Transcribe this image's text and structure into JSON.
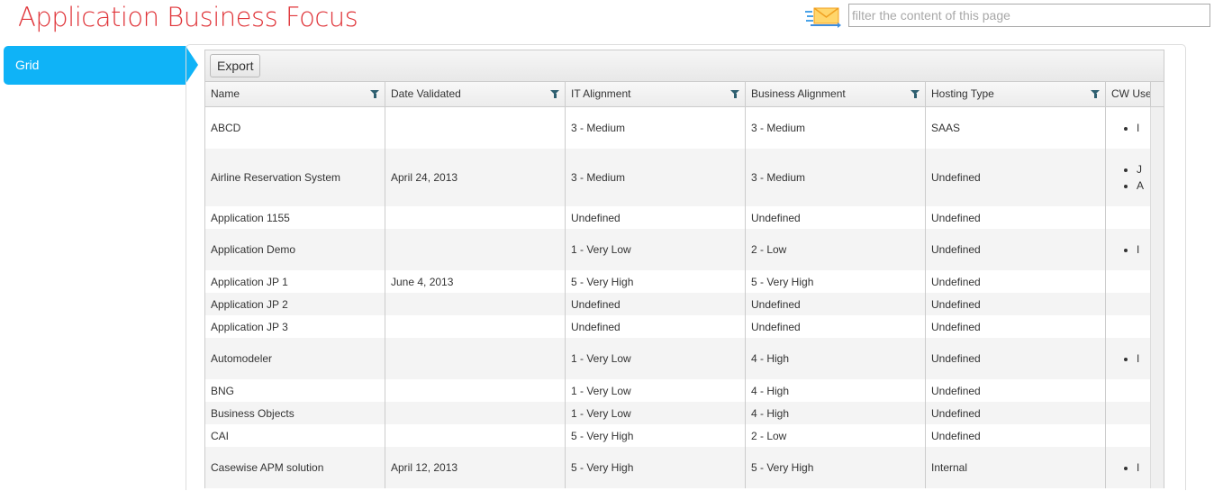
{
  "page": {
    "title": "Application Business Focus",
    "filter_placeholder": "filter the content of this page",
    "mail_icon": "envelope-icon"
  },
  "sidebar": {
    "items": [
      {
        "label": "Grid",
        "active": true
      }
    ]
  },
  "colors": {
    "title": "#e0353a",
    "accent": "#0fb3f7",
    "filter_icon": "#2e5f70"
  },
  "toolbar": {
    "export_label": "Export"
  },
  "grid": {
    "columns": [
      "Name",
      "Date Validated",
      "IT Alignment",
      "Business Alignment",
      "Hosting Type",
      "CW Use"
    ],
    "rows": [
      {
        "name": "ABCD",
        "date": "",
        "it": "3 - Medium",
        "biz": "3 - Medium",
        "host": "SAAS",
        "users": [
          "I"
        ]
      },
      {
        "name": "Airline Reservation System",
        "date": "April 24, 2013",
        "it": "3 - Medium",
        "biz": "3 - Medium",
        "host": "Undefined",
        "users": [
          "J",
          "A"
        ]
      },
      {
        "name": "Application 1155",
        "date": "",
        "it": "Undefined",
        "biz": "Undefined",
        "host": "Undefined",
        "users": []
      },
      {
        "name": "Application Demo",
        "date": "",
        "it": "1 - Very Low",
        "biz": "2 - Low",
        "host": "Undefined",
        "users": [
          "I"
        ]
      },
      {
        "name": "Application JP 1",
        "date": "June 4, 2013",
        "it": "5 - Very High",
        "biz": "5 - Very High",
        "host": "Undefined",
        "users": []
      },
      {
        "name": "Application JP 2",
        "date": "",
        "it": "Undefined",
        "biz": "Undefined",
        "host": "Undefined",
        "users": []
      },
      {
        "name": "Application JP 3",
        "date": "",
        "it": "Undefined",
        "biz": "Undefined",
        "host": "Undefined",
        "users": []
      },
      {
        "name": "Automodeler",
        "date": "",
        "it": "1 - Very Low",
        "biz": "4 - High",
        "host": "Undefined",
        "users": [
          "I"
        ]
      },
      {
        "name": "BNG",
        "date": "",
        "it": "1 - Very Low",
        "biz": "4 - High",
        "host": "Undefined",
        "users": []
      },
      {
        "name": "Business Objects",
        "date": "",
        "it": "1 - Very Low",
        "biz": "4 - High",
        "host": "Undefined",
        "users": []
      },
      {
        "name": "CAI",
        "date": "",
        "it": "5 - Very High",
        "biz": "2 - Low",
        "host": "Undefined",
        "users": []
      },
      {
        "name": "Casewise APM solution",
        "date": "April 12, 2013",
        "it": "5 - Very High",
        "biz": "5 - Very High",
        "host": "Internal",
        "users": [
          "I"
        ]
      }
    ]
  }
}
